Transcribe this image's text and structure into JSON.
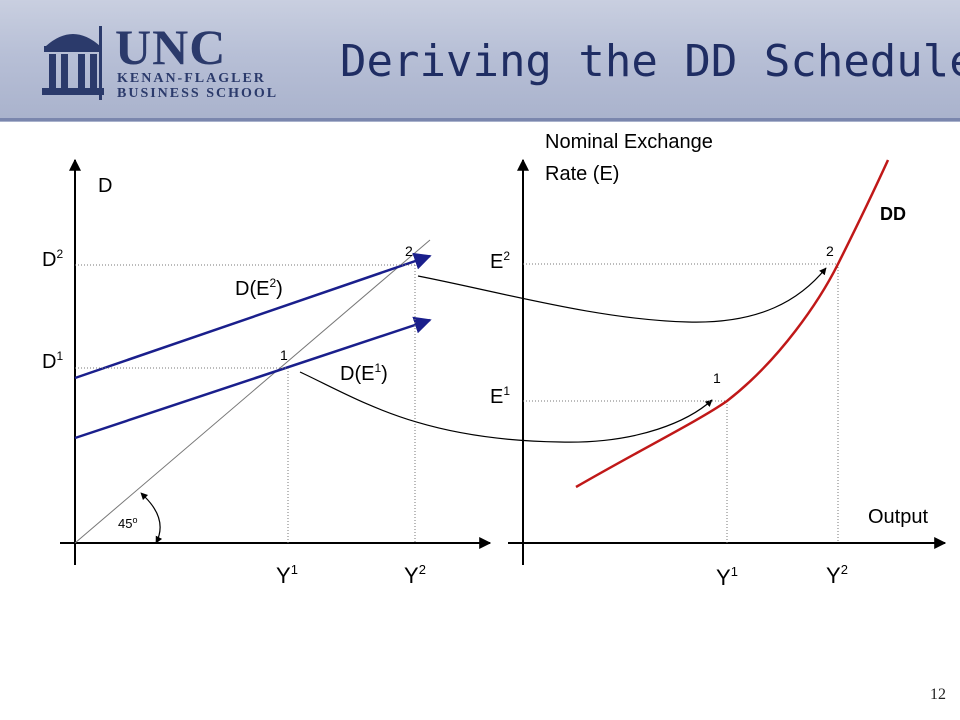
{
  "slide": {
    "title": "Deriving the DD Schedule",
    "page_number": "12"
  },
  "logo": {
    "word": "UNC",
    "line1": "KENAN-FLAGLER",
    "line2": "BUSINESS SCHOOL"
  },
  "left_panel": {
    "y_axis_label": "D",
    "d_levels": [
      {
        "base": "D",
        "sup": "2"
      },
      {
        "base": "D",
        "sup": "1"
      }
    ],
    "x_ticks": [
      {
        "base": "Y",
        "sup": "1"
      },
      {
        "base": "Y",
        "sup": "2"
      }
    ],
    "curve_labels": [
      {
        "base": "D(E",
        "sup": "2",
        "tail": ")"
      },
      {
        "base": "D(E",
        "sup": "1",
        "tail": ")"
      }
    ],
    "point_labels": [
      "1",
      "2"
    ],
    "angle_label": {
      "base": "45",
      "sup": "o"
    }
  },
  "right_panel": {
    "y_axis_label_line1": "Nominal Exchange",
    "y_axis_label_line2": "Rate (E)",
    "x_axis_label": "Output",
    "curve_label": "DD",
    "e_levels": [
      {
        "base": "E",
        "sup": "2"
      },
      {
        "base": "E",
        "sup": "1"
      }
    ],
    "x_ticks": [
      {
        "base": "Y",
        "sup": "1"
      },
      {
        "base": "Y",
        "sup": "2"
      }
    ],
    "point_labels": [
      "1",
      "2"
    ]
  },
  "colors": {
    "demand_lines": "#1a1f8c",
    "dd_curve": "#c01818",
    "axes": "#000000",
    "guides": "#777777",
    "title": "#1f2d63"
  }
}
